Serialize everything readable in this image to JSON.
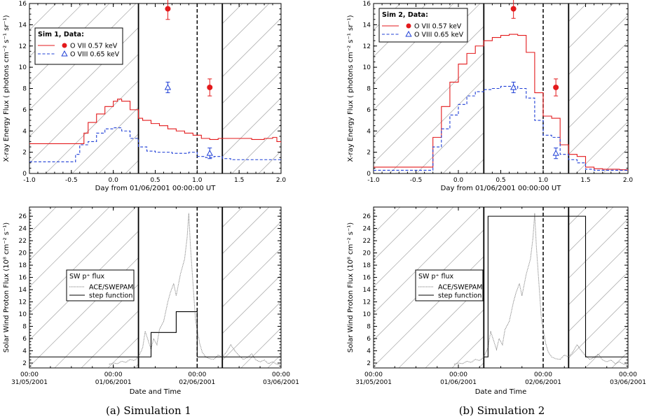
{
  "captions": [
    "(a) Simulation 1",
    "(b) Simulation 2"
  ],
  "colors": {
    "oviii_line": "#1f3fd6",
    "ovii_line": "#e31a1c",
    "proton_data": "#808080",
    "step": "#000000",
    "hatch": "#b4b4b4"
  },
  "chart_data": [
    {
      "id": "sim1_xray",
      "type": "line",
      "title": "",
      "xlabel": "Day from 01/06/2001 00:00:00 UT",
      "ylabel": "X-ray Energy Flux ( photons cm⁻² s⁻¹ sr⁻¹)",
      "xlim": [
        -1.0,
        2.0
      ],
      "ylim": [
        0,
        16
      ],
      "x_ticks": [
        -1.0,
        -0.5,
        0.0,
        0.5,
        1.0,
        1.5,
        2.0
      ],
      "x_tick_labels": [
        "-1.0",
        "-0.5",
        "0.0",
        "0.5",
        "1.0",
        "1.5",
        "2.0"
      ],
      "y_ticks": [
        0,
        2,
        4,
        6,
        8,
        10,
        12,
        14,
        16
      ],
      "y_tick_labels": [
        "0",
        "2",
        "4",
        "6",
        "8",
        "10",
        "12",
        "14",
        "16"
      ],
      "legend_title": "Sim 1, Data:",
      "legend_position": "top-left",
      "series": [
        {
          "name": "O VII 0.57 keV",
          "style": "solid",
          "x": [
            -1.0,
            -0.4,
            -0.35,
            -0.3,
            -0.2,
            -0.1,
            0.0,
            0.05,
            0.1,
            0.2,
            0.3,
            0.35,
            0.45,
            0.55,
            0.65,
            0.75,
            0.85,
            0.95,
            1.05,
            1.15,
            1.25,
            1.35,
            1.5,
            1.65,
            1.8,
            1.9,
            1.95,
            2.0
          ],
          "y": [
            2.8,
            2.8,
            3.8,
            4.8,
            5.6,
            6.3,
            6.8,
            7.0,
            6.8,
            6.0,
            5.2,
            5.0,
            4.7,
            4.5,
            4.2,
            4.0,
            3.8,
            3.6,
            3.3,
            3.2,
            3.3,
            3.3,
            3.3,
            3.2,
            3.3,
            3.4,
            3.0,
            2.9
          ]
        },
        {
          "name": "O VIII 0.65 keV",
          "style": "dashed",
          "x": [
            -1.0,
            -0.5,
            -0.45,
            -0.4,
            -0.3,
            -0.2,
            -0.1,
            0.0,
            0.1,
            0.2,
            0.3,
            0.4,
            0.5,
            0.6,
            0.7,
            0.8,
            0.9,
            1.0,
            1.1,
            1.2,
            1.3,
            1.4,
            1.6,
            1.8,
            2.0
          ],
          "y": [
            1.1,
            1.1,
            1.8,
            2.7,
            3.0,
            3.8,
            4.2,
            4.3,
            4.0,
            3.3,
            2.5,
            2.1,
            2.0,
            2.0,
            1.9,
            1.9,
            2.0,
            1.6,
            1.5,
            1.6,
            1.4,
            1.3,
            1.3,
            1.3,
            1.2
          ]
        }
      ],
      "data_points": [
        {
          "name": "O VII 0.57 keV",
          "marker": "filled-circle",
          "points": [
            {
              "x": 0.65,
              "y": 15.5,
              "err": 1.0
            },
            {
              "x": 1.15,
              "y": 8.1,
              "err": 0.8
            }
          ]
        },
        {
          "name": "O VIII 0.65 keV",
          "marker": "open-triangle",
          "points": [
            {
              "x": 0.65,
              "y": 8.1,
              "err": 0.5
            },
            {
              "x": 1.15,
              "y": 1.9,
              "err": 0.5
            }
          ]
        }
      ],
      "vlines": [
        {
          "x": 0.3,
          "style": "solid"
        },
        {
          "x": 1.0,
          "style": "dashed"
        },
        {
          "x": 1.3,
          "style": "solid"
        }
      ],
      "hatch_outside": [
        0.3,
        1.3
      ]
    },
    {
      "id": "sim2_xray",
      "type": "line",
      "title": "",
      "xlabel": "Day from 01/06/2001 00:00:00 UT",
      "ylabel": "X-ray Energy Flux ( photons cm⁻² s⁻¹ sr⁻¹)",
      "xlim": [
        -1.0,
        2.0
      ],
      "ylim": [
        0,
        16
      ],
      "x_ticks": [
        -1.0,
        -0.5,
        0.0,
        0.5,
        1.0,
        1.5,
        2.0
      ],
      "x_tick_labels": [
        "-1.0",
        "-0.5",
        "0.0",
        "0.5",
        "1.0",
        "1.5",
        "2.0"
      ],
      "y_ticks": [
        0,
        2,
        4,
        6,
        8,
        10,
        12,
        14,
        16
      ],
      "y_tick_labels": [
        "0",
        "2",
        "4",
        "6",
        "8",
        "10",
        "12",
        "14",
        "16"
      ],
      "legend_title": "Sim 2, Data:",
      "legend_position": "top-left",
      "series": [
        {
          "name": "O VII 0.57 keV",
          "style": "solid",
          "x": [
            -1.0,
            -0.4,
            -0.3,
            -0.2,
            -0.1,
            0.0,
            0.1,
            0.2,
            0.3,
            0.4,
            0.5,
            0.6,
            0.7,
            0.8,
            0.9,
            1.0,
            1.1,
            1.2,
            1.3,
            1.4,
            1.5,
            1.6,
            1.7,
            1.8,
            1.9,
            2.0
          ],
          "y": [
            0.6,
            0.6,
            3.4,
            6.3,
            8.6,
            10.3,
            11.3,
            12.0,
            12.5,
            12.8,
            13.0,
            13.1,
            13.0,
            11.4,
            7.6,
            5.4,
            5.2,
            2.7,
            1.8,
            1.6,
            0.6,
            0.45,
            0.4,
            0.4,
            0.35,
            0.3
          ]
        },
        {
          "name": "O VIII 0.65 keV",
          "style": "dashed",
          "x": [
            -1.0,
            -0.4,
            -0.3,
            -0.2,
            -0.1,
            0.0,
            0.1,
            0.2,
            0.3,
            0.4,
            0.5,
            0.6,
            0.7,
            0.8,
            0.9,
            1.0,
            1.1,
            1.2,
            1.3,
            1.4,
            1.5,
            1.6,
            1.8,
            2.0
          ],
          "y": [
            0.3,
            0.3,
            2.5,
            4.2,
            5.5,
            6.5,
            7.3,
            7.7,
            7.9,
            8.0,
            8.2,
            8.2,
            8.0,
            7.1,
            5.0,
            3.6,
            3.4,
            1.8,
            1.3,
            1.0,
            0.4,
            0.3,
            0.3,
            0.25
          ]
        }
      ],
      "data_points": [
        {
          "name": "O VII 0.57 keV",
          "marker": "filled-circle",
          "points": [
            {
              "x": 0.65,
              "y": 15.5,
              "err": 0.9
            },
            {
              "x": 1.15,
              "y": 8.1,
              "err": 0.8
            }
          ]
        },
        {
          "name": "O VIII 0.65 keV",
          "marker": "open-triangle",
          "points": [
            {
              "x": 0.65,
              "y": 8.1,
              "err": 0.5
            },
            {
              "x": 1.15,
              "y": 1.9,
              "err": 0.5
            }
          ]
        }
      ],
      "vlines": [
        {
          "x": 0.3,
          "style": "solid"
        },
        {
          "x": 1.0,
          "style": "dashed"
        },
        {
          "x": 1.3,
          "style": "solid"
        }
      ],
      "hatch_outside": [
        0.3,
        1.3
      ]
    },
    {
      "id": "sim1_proton",
      "type": "line",
      "title": "",
      "xlabel": "Date and Time",
      "ylabel": "Solar Wind Proton Flux (10⁸ cm⁻² s⁻¹)",
      "xlim": [
        -1.0,
        2.0
      ],
      "ylim": [
        1.2,
        27.5
      ],
      "x_ticks": [
        -1.0,
        0.0,
        1.0,
        2.0
      ],
      "x_tick_labels": [
        "00:00\n31/05/2001",
        "00:00\n01/06/2001",
        "00:00\n02/06/2001",
        "00:00\n03/06/2001"
      ],
      "y_ticks": [
        2,
        4,
        6,
        8,
        10,
        12,
        14,
        16,
        18,
        20,
        22,
        24,
        26
      ],
      "y_tick_labels": [
        "2",
        "4",
        "6",
        "8",
        "10",
        "12",
        "14",
        "16",
        "18",
        "20",
        "22",
        "24",
        "26"
      ],
      "legend_title": "SW p⁺ flux",
      "legend_position": "center-left",
      "series": [
        {
          "name": "ACE/SWEPAM",
          "style": "dotted",
          "x": [
            -0.05,
            0.0,
            0.05,
            0.1,
            0.15,
            0.2,
            0.25,
            0.3,
            0.35,
            0.38,
            0.42,
            0.45,
            0.48,
            0.52,
            0.55,
            0.6,
            0.65,
            0.68,
            0.72,
            0.75,
            0.8,
            0.85,
            0.88,
            0.9,
            0.92,
            0.95,
            0.98,
            1.0,
            1.03,
            1.06,
            1.1,
            1.15,
            1.2,
            1.25,
            1.3,
            1.35,
            1.4,
            1.45,
            1.5,
            1.55,
            1.6,
            1.65,
            1.7,
            1.75,
            1.8,
            1.85,
            1.9,
            1.95,
            2.0
          ],
          "y": [
            1.8,
            2.0,
            1.9,
            2.3,
            2.1,
            2.6,
            2.4,
            3.0,
            4.5,
            7.2,
            5.5,
            4.2,
            6.0,
            5.0,
            7.5,
            8.8,
            12.0,
            13.5,
            15.0,
            13.0,
            16.5,
            19.0,
            22.5,
            26.5,
            21.0,
            15.0,
            9.0,
            7.5,
            5.2,
            3.8,
            3.0,
            2.7,
            2.6,
            3.3,
            3.0,
            3.8,
            5.0,
            4.0,
            3.2,
            2.6,
            2.9,
            3.5,
            2.5,
            2.2,
            2.5,
            1.9,
            2.2,
            1.8,
            1.7
          ]
        },
        {
          "name": "step function",
          "style": "solid",
          "x": [
            -1.0,
            0.45,
            0.45,
            0.75,
            0.75,
            1.0,
            1.0,
            2.0
          ],
          "y": [
            3.0,
            3.0,
            7.0,
            7.0,
            10.4,
            10.4,
            3.0,
            3.0
          ]
        }
      ],
      "vlines": [
        {
          "x": 0.3,
          "style": "solid"
        },
        {
          "x": 1.0,
          "style": "dashed"
        },
        {
          "x": 1.3,
          "style": "solid"
        }
      ],
      "hatch_outside": [
        0.3,
        1.3
      ]
    },
    {
      "id": "sim2_proton",
      "type": "line",
      "title": "",
      "xlabel": "Date and Time",
      "ylabel": "Solar Wind Proton Flux (10⁸ cm⁻² s⁻¹)",
      "xlim": [
        -1.0,
        2.0
      ],
      "ylim": [
        1.2,
        27.5
      ],
      "x_ticks": [
        -1.0,
        0.0,
        1.0,
        2.0
      ],
      "x_tick_labels": [
        "00:00\n31/05/2001",
        "00:00\n01/06/2001",
        "00:00\n02/06/2001",
        "00:00\n03/06/2001"
      ],
      "y_ticks": [
        2,
        4,
        6,
        8,
        10,
        12,
        14,
        16,
        18,
        20,
        22,
        24,
        26
      ],
      "y_tick_labels": [
        "2",
        "4",
        "6",
        "8",
        "10",
        "12",
        "14",
        "16",
        "18",
        "20",
        "22",
        "24",
        "26"
      ],
      "legend_title": "SW p⁺ flux",
      "legend_position": "center-left",
      "series": [
        {
          "name": "ACE/SWEPAM",
          "style": "dotted",
          "x": [
            -0.05,
            0.0,
            0.05,
            0.1,
            0.15,
            0.2,
            0.25,
            0.3,
            0.35,
            0.38,
            0.42,
            0.45,
            0.48,
            0.52,
            0.55,
            0.6,
            0.65,
            0.68,
            0.72,
            0.75,
            0.8,
            0.85,
            0.88,
            0.9,
            0.92,
            0.95,
            0.98,
            1.0,
            1.03,
            1.06,
            1.1,
            1.15,
            1.2,
            1.25,
            1.3,
            1.35,
            1.4,
            1.45,
            1.5,
            1.55,
            1.6,
            1.65,
            1.7,
            1.75,
            1.8,
            1.85,
            1.9,
            1.95,
            2.0
          ],
          "y": [
            1.8,
            2.0,
            1.9,
            2.3,
            2.1,
            2.6,
            2.4,
            3.0,
            4.5,
            7.2,
            5.5,
            4.2,
            6.0,
            5.0,
            7.5,
            8.8,
            12.0,
            13.5,
            15.0,
            13.0,
            16.5,
            19.0,
            22.5,
            26.5,
            21.0,
            15.0,
            9.0,
            7.5,
            5.2,
            3.8,
            3.0,
            2.7,
            2.6,
            3.3,
            3.0,
            3.8,
            5.0,
            4.0,
            3.2,
            2.6,
            2.9,
            3.5,
            2.5,
            2.2,
            2.5,
            1.9,
            2.2,
            1.8,
            1.7
          ]
        },
        {
          "name": "step function",
          "style": "solid",
          "x": [
            -1.0,
            0.3,
            0.3,
            0.35,
            0.35,
            1.5,
            1.5,
            2.0
          ],
          "y": [
            1.2,
            1.2,
            3.0,
            3.0,
            26.0,
            26.0,
            3.0,
            3.0
          ]
        }
      ],
      "vlines": [
        {
          "x": 0.3,
          "style": "solid"
        },
        {
          "x": 1.0,
          "style": "dashed"
        },
        {
          "x": 1.3,
          "style": "solid"
        }
      ],
      "hatch_outside": [
        0.3,
        1.3
      ]
    }
  ]
}
